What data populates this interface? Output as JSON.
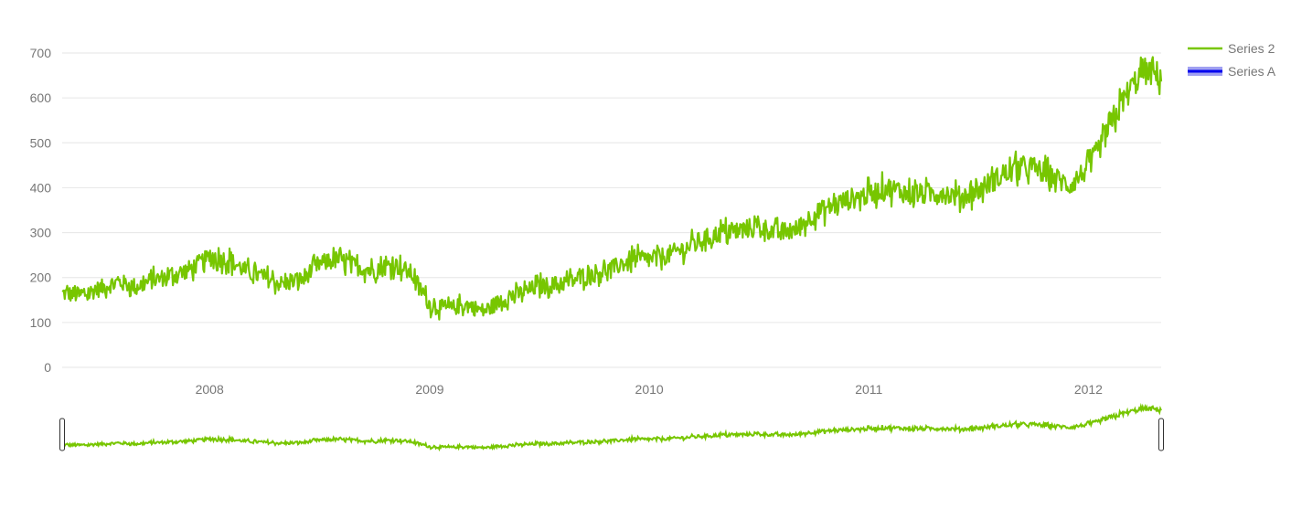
{
  "colors": {
    "series_2": "#77c600",
    "series_a": "#0000ee",
    "series_a_fill": "#8888ee",
    "grid": "#e6e6e6",
    "axis_text": "#777777",
    "handle_stroke": "#333333"
  },
  "legend": {
    "placement": "top-right",
    "items": [
      {
        "label": "Series 2",
        "color": "#77c600"
      },
      {
        "label": "Series A",
        "color": "#0000ee"
      }
    ]
  },
  "range_selector": {
    "present": true,
    "handles": [
      "left-handle",
      "right-handle"
    ]
  },
  "chart_data": {
    "type": "line",
    "title": "",
    "xlabel": "",
    "ylabel": "",
    "x_range": [
      "2007-05-01",
      "2012-05-01"
    ],
    "ylim": [
      0,
      720
    ],
    "grid": true,
    "x_ticks": [
      "2008",
      "2009",
      "2010",
      "2011",
      "2012"
    ],
    "x_tick_dates": [
      "2008-01-01",
      "2009-01-01",
      "2010-01-01",
      "2011-01-01",
      "2012-01-01"
    ],
    "y_ticks": [
      "0",
      "100",
      "200",
      "300",
      "400",
      "500",
      "600",
      "700"
    ],
    "series": [
      {
        "name": "Series 2",
        "color": "#77c600",
        "points": [
          [
            "2007-05-01",
            165
          ],
          [
            "2007-06-01",
            160
          ],
          [
            "2007-07-01",
            175
          ],
          [
            "2007-08-01",
            190
          ],
          [
            "2007-09-01",
            180
          ],
          [
            "2007-10-01",
            195
          ],
          [
            "2007-11-01",
            205
          ],
          [
            "2007-12-01",
            220
          ],
          [
            "2008-01-01",
            245
          ],
          [
            "2008-02-01",
            240
          ],
          [
            "2008-03-01",
            215
          ],
          [
            "2008-04-01",
            200
          ],
          [
            "2008-05-01",
            185
          ],
          [
            "2008-06-01",
            195
          ],
          [
            "2008-07-01",
            230
          ],
          [
            "2008-08-01",
            240
          ],
          [
            "2008-09-01",
            225
          ],
          [
            "2008-10-01",
            215
          ],
          [
            "2008-11-01",
            230
          ],
          [
            "2008-12-01",
            210
          ],
          [
            "2009-01-01",
            140
          ],
          [
            "2009-02-01",
            130
          ],
          [
            "2009-03-01",
            140
          ],
          [
            "2009-04-01",
            125
          ],
          [
            "2009-05-01",
            150
          ],
          [
            "2009-06-01",
            165
          ],
          [
            "2009-07-01",
            180
          ],
          [
            "2009-08-01",
            185
          ],
          [
            "2009-09-01",
            195
          ],
          [
            "2009-10-01",
            210
          ],
          [
            "2009-11-01",
            220
          ],
          [
            "2009-12-01",
            240
          ],
          [
            "2010-01-01",
            240
          ],
          [
            "2010-02-01",
            250
          ],
          [
            "2010-03-01",
            265
          ],
          [
            "2010-04-01",
            285
          ],
          [
            "2010-05-01",
            300
          ],
          [
            "2010-06-01",
            305
          ],
          [
            "2010-07-01",
            315
          ],
          [
            "2010-08-01",
            300
          ],
          [
            "2010-09-01",
            305
          ],
          [
            "2010-10-01",
            340
          ],
          [
            "2010-11-01",
            360
          ],
          [
            "2010-12-01",
            375
          ],
          [
            "2011-01-01",
            385
          ],
          [
            "2011-02-01",
            400
          ],
          [
            "2011-03-01",
            390
          ],
          [
            "2011-04-01",
            385
          ],
          [
            "2011-05-01",
            390
          ],
          [
            "2011-06-01",
            380
          ],
          [
            "2011-07-01",
            395
          ],
          [
            "2011-08-01",
            420
          ],
          [
            "2011-09-01",
            440
          ],
          [
            "2011-10-01",
            445
          ],
          [
            "2011-11-01",
            425
          ],
          [
            "2011-12-01",
            405
          ],
          [
            "2012-01-01",
            445
          ],
          [
            "2012-02-01",
            520
          ],
          [
            "2012-03-01",
            600
          ],
          [
            "2012-04-01",
            660
          ],
          [
            "2012-05-01",
            650
          ]
        ],
        "noise_amplitude": 40
      },
      {
        "name": "Series A",
        "color": "#0000ee",
        "points": []
      }
    ]
  }
}
